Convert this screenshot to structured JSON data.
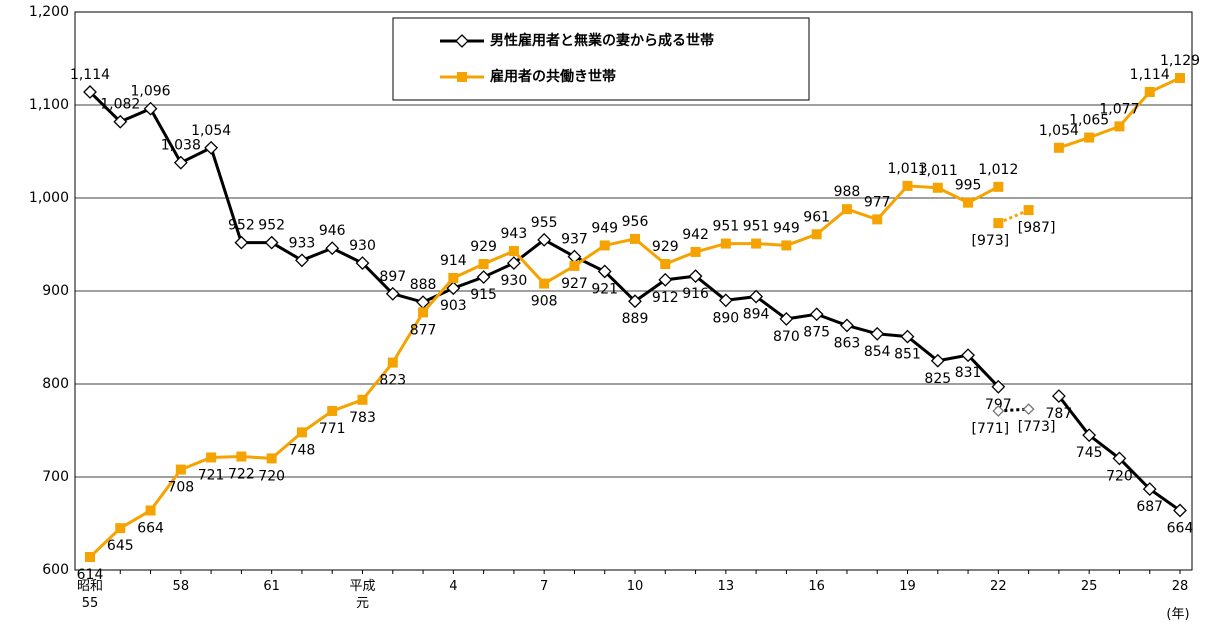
{
  "chart_data": {
    "type": "line",
    "categories": [
      "昭和\n55",
      null,
      null,
      "58",
      null,
      null,
      "61",
      null,
      null,
      "平成\n元",
      null,
      null,
      "4",
      null,
      null,
      "7",
      null,
      null,
      "10",
      null,
      null,
      "13",
      null,
      null,
      "16",
      null,
      null,
      "19",
      null,
      null,
      "22",
      null,
      null,
      "25",
      null,
      null,
      "28"
    ],
    "x_unit": "(年)",
    "series": [
      {
        "name": "男性雇用者と無業の妻から成る世帯",
        "color": "#000000",
        "marker": "diamond",
        "values": [
          1114,
          1082,
          1096,
          1038,
          1054,
          952,
          952,
          933,
          946,
          930,
          897,
          888,
          903,
          915,
          930,
          955,
          937,
          921,
          889,
          912,
          916,
          890,
          894,
          870,
          875,
          863,
          854,
          851,
          825,
          831,
          797,
          null,
          787,
          745,
          720,
          687,
          664
        ],
        "value_labels": [
          "1,114",
          "1,082",
          "1,096",
          "1,038",
          "1,054",
          "952",
          "952",
          "933",
          "946",
          "930",
          "897",
          "888",
          "903",
          "915",
          "930",
          "955",
          "937",
          "921",
          "889",
          "912",
          "916",
          "890",
          "894",
          "870",
          "875",
          "863",
          "854",
          "851",
          "825",
          "831",
          "797",
          null,
          "787",
          "745",
          "720",
          "687",
          "664"
        ]
      },
      {
        "name": "雇用者の共働き世帯",
        "color": "#f5a300",
        "marker": "square",
        "values": [
          614,
          645,
          664,
          708,
          721,
          722,
          720,
          748,
          771,
          783,
          823,
          877,
          914,
          929,
          943,
          908,
          927,
          949,
          956,
          929,
          942,
          951,
          951,
          949,
          961,
          988,
          977,
          1013,
          1011,
          995,
          1012,
          null,
          1054,
          1065,
          1077,
          1114,
          1129
        ],
        "value_labels": [
          "614",
          "645",
          "664",
          "708",
          "721",
          "722",
          "720",
          "748",
          "771",
          "783",
          "823",
          "877",
          "914",
          "929",
          "943",
          "908",
          "927",
          "949",
          "956",
          "929",
          "942",
          "951",
          "951",
          "949",
          "961",
          "988",
          "977",
          "1,013",
          "1,011",
          "995",
          "1,012",
          null,
          "1,054",
          "1,065",
          "1,077",
          "1,114",
          "1,129"
        ]
      },
      {
        "color": "#000000",
        "marker": "diamond",
        "dotted": true,
        "values": [
          null,
          null,
          null,
          null,
          null,
          null,
          null,
          null,
          null,
          null,
          null,
          null,
          null,
          null,
          null,
          null,
          null,
          null,
          null,
          null,
          null,
          null,
          null,
          null,
          null,
          null,
          null,
          null,
          null,
          null,
          771,
          773,
          null,
          null,
          null,
          null,
          null
        ],
        "value_labels": [
          null,
          null,
          null,
          null,
          null,
          null,
          null,
          null,
          null,
          null,
          null,
          null,
          null,
          null,
          null,
          null,
          null,
          null,
          null,
          null,
          null,
          null,
          null,
          null,
          null,
          null,
          null,
          null,
          null,
          null,
          "[771]",
          "[773]",
          null,
          null,
          null,
          null,
          null
        ]
      },
      {
        "color": "#f5a300",
        "marker": "square",
        "dotted": true,
        "values": [
          null,
          null,
          null,
          null,
          null,
          null,
          null,
          null,
          null,
          null,
          null,
          null,
          null,
          null,
          null,
          null,
          null,
          null,
          null,
          null,
          null,
          null,
          null,
          null,
          null,
          null,
          null,
          null,
          null,
          null,
          973,
          987,
          null,
          null,
          null,
          null,
          null
        ],
        "value_labels": [
          null,
          null,
          null,
          null,
          null,
          null,
          null,
          null,
          null,
          null,
          null,
          null,
          null,
          null,
          null,
          null,
          null,
          null,
          null,
          null,
          null,
          null,
          null,
          null,
          null,
          null,
          null,
          null,
          null,
          null,
          "[973]",
          "[987]",
          null,
          null,
          null,
          null,
          null
        ]
      }
    ],
    "ylim": [
      600,
      1200
    ],
    "yticks": [
      {
        "value": 600,
        "label": "600"
      },
      {
        "value": 700,
        "label": "700"
      },
      {
        "value": 800,
        "label": "800"
      },
      {
        "value": 900,
        "label": "900"
      },
      {
        "value": 1000,
        "label": "1,000"
      },
      {
        "value": 1100,
        "label": "1,100"
      },
      {
        "value": 1200,
        "label": "1,200"
      }
    ],
    "grid": true,
    "legend": "top-center"
  }
}
